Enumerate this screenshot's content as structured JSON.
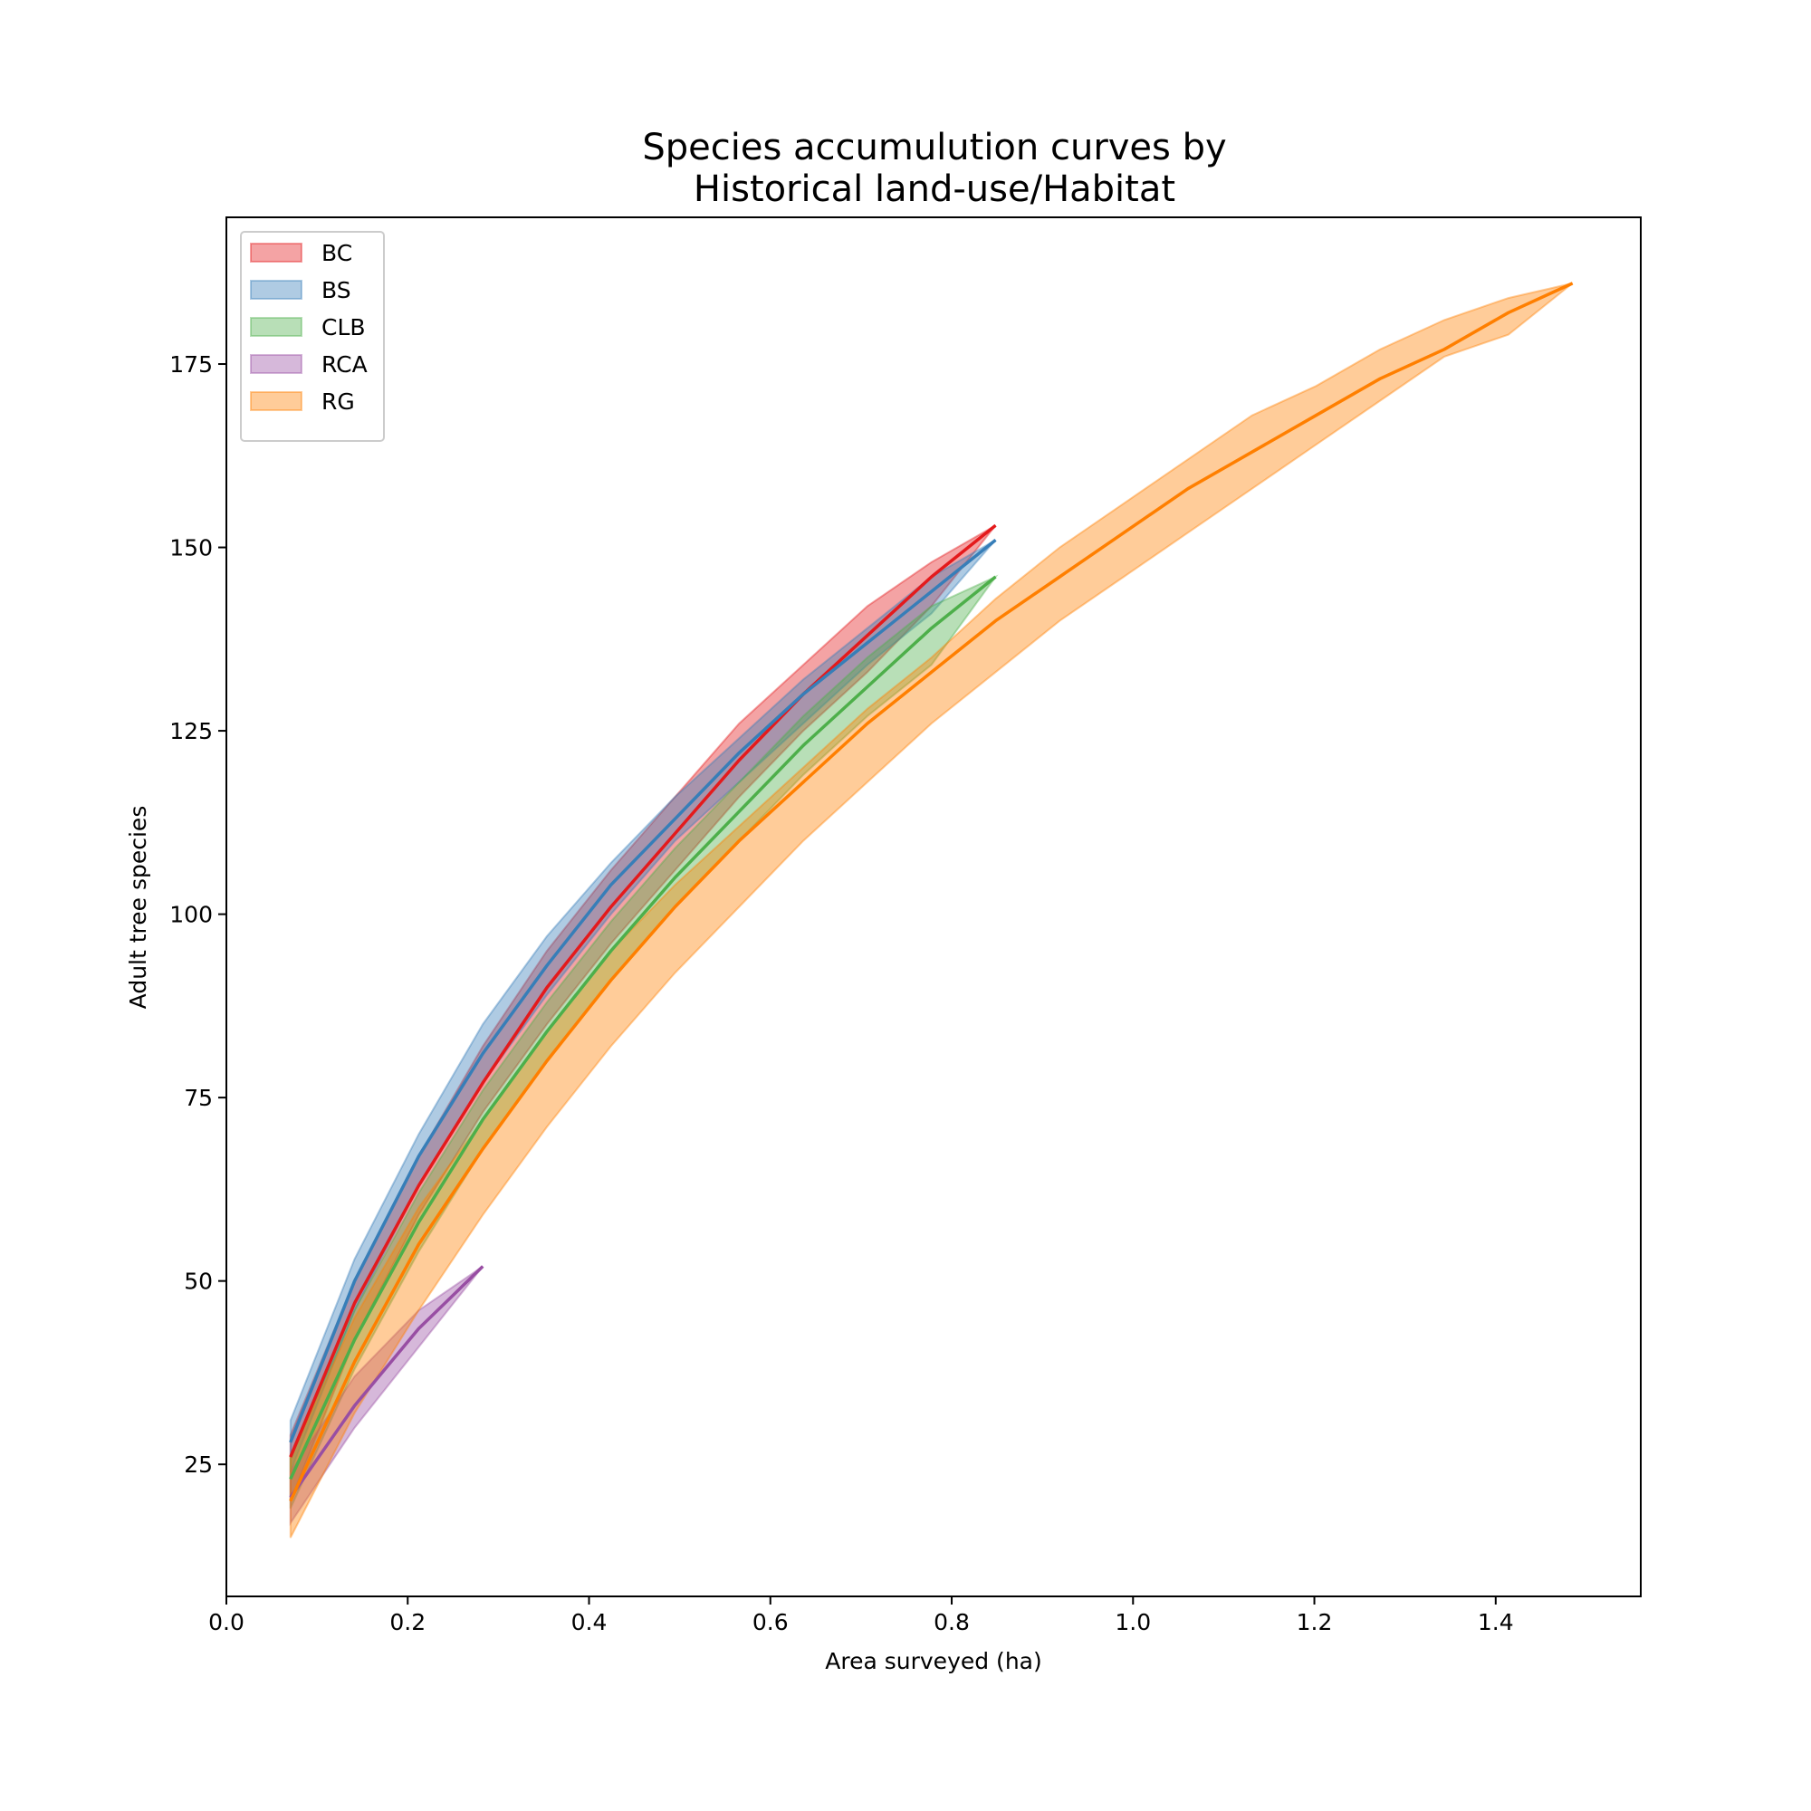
{
  "chart_data": {
    "type": "area",
    "title_lines": [
      "Species accumulution curves by",
      "Historical land-use/Habitat"
    ],
    "xlabel": "Area surveyed (ha)",
    "ylabel": "Adult tree species",
    "xlim": [
      0.0,
      1.56
    ],
    "ylim": [
      7,
      195
    ],
    "xticks": [
      0.0,
      0.2,
      0.4,
      0.6,
      0.8,
      1.0,
      1.2,
      1.4
    ],
    "xtick_labels": [
      "0.0",
      "0.2",
      "0.4",
      "0.6",
      "0.8",
      "1.0",
      "1.2",
      "1.4"
    ],
    "yticks": [
      25,
      50,
      75,
      100,
      125,
      150,
      175
    ],
    "ytick_labels": [
      "25",
      "50",
      "75",
      "100",
      "125",
      "150",
      "175"
    ],
    "grid": false,
    "legend": {
      "placement": "top-left",
      "style": "patch"
    },
    "series": [
      {
        "name": "BC",
        "line_color": "#e41a1c",
        "fill_color": "#e41a1c",
        "x": [
          0.0707,
          0.1414,
          0.2121,
          0.2828,
          0.3535,
          0.4242,
          0.4949,
          0.5656,
          0.6363,
          0.707,
          0.7777,
          0.8484
        ],
        "y": [
          26,
          47,
          63,
          77,
          90,
          101,
          111,
          121,
          130,
          138,
          146,
          153
        ],
        "upper": [
          29,
          50,
          67,
          82,
          95,
          106,
          116,
          126,
          134,
          142,
          148,
          153
        ],
        "lower": [
          20,
          42,
          59,
          73,
          85,
          96,
          106,
          116,
          125,
          133,
          142,
          153
        ]
      },
      {
        "name": "BS",
        "line_color": "#377eb8",
        "fill_color": "#377eb8",
        "x": [
          0.0707,
          0.1414,
          0.2121,
          0.2828,
          0.3535,
          0.4242,
          0.4949,
          0.5656,
          0.6363,
          0.707,
          0.7777,
          0.8484
        ],
        "y": [
          28,
          50,
          67,
          81,
          93,
          104,
          113,
          122,
          130,
          137,
          144,
          151
        ],
        "upper": [
          31,
          53,
          70,
          85,
          97,
          107,
          116,
          124,
          132,
          139,
          146,
          151
        ],
        "lower": [
          24,
          46,
          63,
          77,
          89,
          100,
          110,
          118,
          126,
          134,
          141,
          151
        ]
      },
      {
        "name": "CLB",
        "line_color": "#4daf4a",
        "fill_color": "#4daf4a",
        "x": [
          0.0707,
          0.1414,
          0.2121,
          0.2828,
          0.3535,
          0.4242,
          0.4949,
          0.5656,
          0.6363,
          0.707,
          0.7777,
          0.8484
        ],
        "y": [
          23,
          42,
          58,
          72,
          84,
          95,
          105,
          114,
          123,
          131,
          139,
          146
        ],
        "upper": [
          26,
          46,
          62,
          76,
          88,
          99,
          109,
          118,
          127,
          135,
          142,
          146
        ],
        "lower": [
          19,
          38,
          54,
          68,
          80,
          91,
          101,
          110,
          119,
          127,
          134,
          146
        ]
      },
      {
        "name": "RCA",
        "line_color": "#984ea3",
        "fill_color": "#984ea3",
        "x": [
          0.0707,
          0.1414,
          0.2121,
          0.2828
        ],
        "y": [
          20.5,
          33,
          43.5,
          52
        ],
        "upper": [
          24,
          37,
          46,
          52
        ],
        "lower": [
          17,
          30,
          41,
          52
        ]
      },
      {
        "name": "RG",
        "line_color": "#ff7f00",
        "fill_color": "#ff7f00",
        "x": [
          0.0707,
          0.1414,
          0.2121,
          0.2828,
          0.3535,
          0.4242,
          0.4949,
          0.5656,
          0.6363,
          0.707,
          0.7777,
          0.8484,
          0.9191,
          0.9898,
          1.0605,
          1.1312,
          1.2019,
          1.2726,
          1.3433,
          1.414,
          1.4847
        ],
        "y": [
          20,
          39,
          55,
          68,
          80,
          91,
          101,
          110,
          118,
          126,
          133,
          140,
          146,
          152,
          158,
          163,
          168,
          173,
          177,
          182,
          186
        ],
        "upper": [
          26,
          45,
          60,
          72,
          84,
          95,
          104,
          112,
          120,
          128,
          135,
          143,
          150,
          156,
          162,
          168,
          172,
          177,
          181,
          184,
          186
        ],
        "lower": [
          15,
          32,
          46,
          59,
          71,
          82,
          92,
          101,
          110,
          118,
          126,
          133,
          140,
          146,
          152,
          158,
          164,
          170,
          176,
          179,
          186
        ]
      }
    ]
  }
}
